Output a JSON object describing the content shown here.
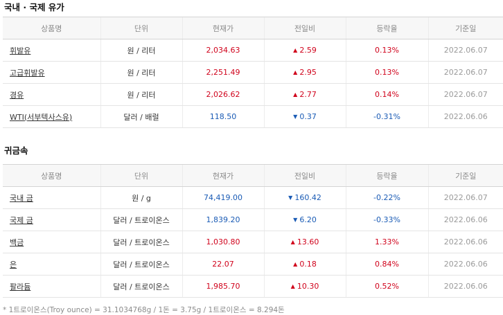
{
  "oil": {
    "title": "국내 · 국제 유가",
    "headers": [
      "상품명",
      "단위",
      "현재가",
      "전일비",
      "등락율",
      "기준일"
    ],
    "rows": [
      {
        "name": "휘발유",
        "unit": "원 / 리터",
        "price": "2,034.63",
        "direction": "up",
        "change": "2.59",
        "rate": "0.13%",
        "date": "2022.06.07"
      },
      {
        "name": "고급휘발유",
        "unit": "원 / 리터",
        "price": "2,251.49",
        "direction": "up",
        "change": "2.95",
        "rate": "0.13%",
        "date": "2022.06.07"
      },
      {
        "name": "경유",
        "unit": "원 / 리터",
        "price": "2,026.62",
        "direction": "up",
        "change": "2.77",
        "rate": "0.14%",
        "date": "2022.06.07"
      },
      {
        "name": "WTI(서부텍사스유)",
        "unit": "달러 / 배럴",
        "price": "118.50",
        "direction": "down",
        "change": "0.37",
        "rate": "-0.31%",
        "date": "2022.06.06"
      }
    ]
  },
  "metal": {
    "title": "귀금속",
    "headers": [
      "상품명",
      "단위",
      "현재가",
      "전일비",
      "등락율",
      "기준일"
    ],
    "rows": [
      {
        "name": "국내 금",
        "unit": "원 / g",
        "price": "74,419.00",
        "direction": "down",
        "change": "160.42",
        "rate": "-0.22%",
        "date": "2022.06.07"
      },
      {
        "name": "국제 금",
        "unit": "달러 / 트로이온스",
        "price": "1,839.20",
        "direction": "down",
        "change": "6.20",
        "rate": "-0.33%",
        "date": "2022.06.06"
      },
      {
        "name": "백금",
        "unit": "달러 / 트로이온스",
        "price": "1,030.80",
        "direction": "up",
        "change": "13.60",
        "rate": "1.33%",
        "date": "2022.06.06"
      },
      {
        "name": "은",
        "unit": "달러 / 트로이온스",
        "price": "22.07",
        "direction": "up",
        "change": "0.18",
        "rate": "0.84%",
        "date": "2022.06.06"
      },
      {
        "name": "팔라듐",
        "unit": "달러 / 트로이온스",
        "price": "1,985.70",
        "direction": "up",
        "change": "10.30",
        "rate": "0.52%",
        "date": "2022.06.06"
      }
    ]
  },
  "footnote": "* 1트로이온스(Troy ounce) = 31.1034768g / 1돈 = 3.75g / 1트로이온스 = 8.294돈",
  "colors": {
    "up": "#d0021b",
    "down": "#1a5bb5"
  },
  "icons": {
    "up": "triangle-up-icon",
    "down": "triangle-down-icon"
  }
}
